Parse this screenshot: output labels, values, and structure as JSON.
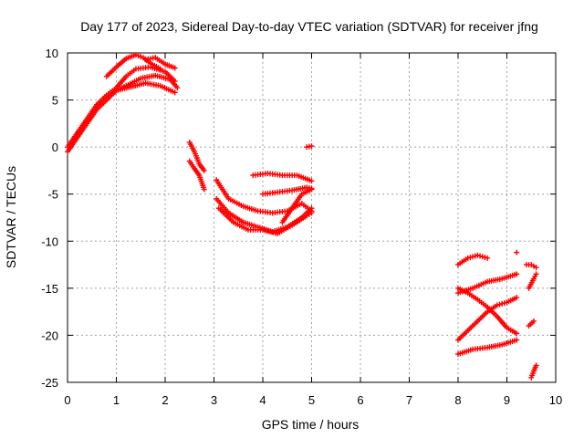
{
  "chart_data": {
    "type": "scatter",
    "title": "Day 177 of 2023, Sidereal Day-to-day VTEC variation (SDTVAR) for receiver jfng",
    "xlabel": "GPS time / hours",
    "ylabel": "SDTVAR / TECUs",
    "xlim": [
      0,
      10
    ],
    "ylim": [
      -25,
      10
    ],
    "xticks": [
      "0",
      "1",
      "2",
      "3",
      "4",
      "5",
      "6",
      "7",
      "8",
      "9",
      "10"
    ],
    "yticks": [
      "10",
      "5",
      "0",
      "-5",
      "-10",
      "-15",
      "-20",
      "-25"
    ],
    "grid": true,
    "marker": "plus",
    "color": "#ff0000",
    "traces": [
      {
        "x": [
          0.0,
          0.2,
          0.4,
          0.6,
          0.8,
          1.0,
          1.2
        ],
        "y": [
          -0.5,
          1.0,
          2.5,
          4.0,
          5.0,
          6.0,
          6.5
        ]
      },
      {
        "x": [
          0.0,
          0.2,
          0.4,
          0.6,
          0.8,
          1.0,
          1.2,
          1.4,
          1.7,
          2.0,
          2.2
        ],
        "y": [
          0.0,
          1.5,
          3.0,
          4.5,
          5.5,
          6.3,
          7.5,
          8.3,
          8.5,
          8.0,
          7.0
        ]
      },
      {
        "x": [
          0.8,
          1.0,
          1.2,
          1.4,
          1.55,
          1.7,
          1.9
        ],
        "y": [
          7.5,
          8.5,
          9.4,
          9.8,
          9.5,
          8.9,
          8.3
        ]
      },
      {
        "x": [
          1.6,
          1.8,
          2.0,
          2.2
        ],
        "y": [
          9.3,
          9.5,
          8.8,
          8.4
        ]
      },
      {
        "x": [
          1.0,
          1.3,
          1.6,
          1.9,
          2.2
        ],
        "y": [
          6.0,
          6.4,
          6.8,
          6.5,
          5.8
        ]
      },
      {
        "x": [
          1.2,
          1.5,
          1.8,
          2.1,
          2.25
        ],
        "y": [
          6.5,
          7.3,
          7.6,
          7.2,
          6.3
        ]
      },
      {
        "x": [
          2.5,
          2.6,
          2.7,
          2.8
        ],
        "y": [
          0.5,
          -0.5,
          -1.8,
          -2.5
        ]
      },
      {
        "x": [
          2.5,
          2.6,
          2.7,
          2.8
        ],
        "y": [
          -1.5,
          -2.3,
          -3.0,
          -4.5
        ]
      },
      {
        "x": [
          3.05,
          3.3,
          3.6,
          3.9,
          4.2,
          4.5,
          4.8,
          5.0
        ],
        "y": [
          -3.5,
          -5.5,
          -6.3,
          -6.8,
          -7.0,
          -6.8,
          -6.0,
          -6.8
        ]
      },
      {
        "x": [
          3.05,
          3.3,
          3.6,
          3.9,
          4.2,
          4.5,
          4.8,
          5.0
        ],
        "y": [
          -5.5,
          -7.0,
          -8.0,
          -8.5,
          -9.0,
          -8.5,
          -7.5,
          -6.5
        ]
      },
      {
        "x": [
          3.1,
          3.4,
          3.7,
          4.0,
          4.3,
          4.6,
          4.9,
          5.0
        ],
        "y": [
          -6.5,
          -8.0,
          -8.8,
          -8.8,
          -9.2,
          -8.3,
          -7.3,
          -7.0
        ]
      },
      {
        "x": [
          3.8,
          4.1,
          4.4,
          4.7,
          5.0
        ],
        "y": [
          -3.0,
          -2.8,
          -3.0,
          -3.0,
          -3.6
        ]
      },
      {
        "x": [
          4.0,
          4.3,
          4.6,
          4.9,
          5.0
        ],
        "y": [
          -5.0,
          -4.8,
          -4.6,
          -4.3,
          -4.4
        ]
      },
      {
        "x": [
          4.4,
          4.6,
          4.8,
          5.0
        ],
        "y": [
          -8.0,
          -6.5,
          -5.0,
          -4.5
        ]
      },
      {
        "x": [
          4.9,
          5.0
        ],
        "y": [
          0.0,
          0.1
        ]
      },
      {
        "x": [
          8.0,
          8.2,
          8.4,
          8.6,
          8.8,
          9.0,
          9.2
        ],
        "y": [
          -20.5,
          -19.5,
          -18.5,
          -17.5,
          -16.8,
          -16.5,
          -16.0
        ]
      },
      {
        "x": [
          8.0,
          8.2,
          8.4,
          8.6,
          8.8,
          9.0,
          9.2
        ],
        "y": [
          -15.0,
          -15.5,
          -16.2,
          -17.0,
          -18.0,
          -19.2,
          -19.8
        ]
      },
      {
        "x": [
          8.0,
          8.3,
          8.6,
          8.9,
          9.2
        ],
        "y": [
          -15.5,
          -15.0,
          -14.3,
          -14.0,
          -13.5
        ]
      },
      {
        "x": [
          8.0,
          8.3,
          8.6,
          8.9,
          9.2
        ],
        "y": [
          -22.0,
          -21.5,
          -21.3,
          -21.0,
          -20.5
        ]
      },
      {
        "x": [
          8.0,
          8.2,
          8.4,
          8.6
        ],
        "y": [
          -12.5,
          -11.8,
          -11.5,
          -11.8
        ]
      },
      {
        "x": [
          9.2
        ],
        "y": [
          -11.2
        ]
      },
      {
        "x": [
          9.4,
          9.5,
          9.6
        ],
        "y": [
          -12.5,
          -12.5,
          -12.8
        ]
      },
      {
        "x": [
          9.45,
          9.55,
          9.6
        ],
        "y": [
          -15.0,
          -14.0,
          -13.5
        ]
      },
      {
        "x": [
          9.45,
          9.55
        ],
        "y": [
          -19.0,
          -18.5
        ]
      },
      {
        "x": [
          9.5,
          9.55,
          9.6
        ],
        "y": [
          -24.5,
          -23.8,
          -23.2
        ]
      }
    ]
  }
}
